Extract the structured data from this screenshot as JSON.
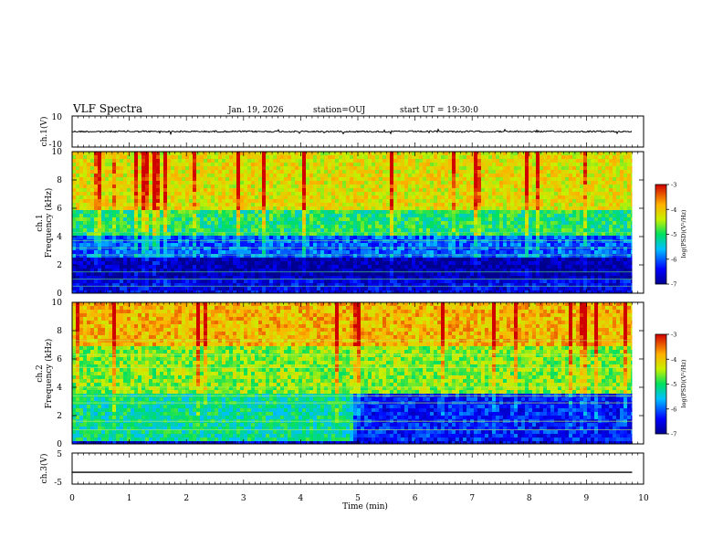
{
  "header": {
    "title": "VLF Spectra",
    "date": "Jan. 19, 2026",
    "station": "station=OUJ",
    "start": "start UT = 19:30:0"
  },
  "chart_data": [
    {
      "type": "line",
      "panel": "ch1-waveform",
      "ylabel": "ch.1(V)",
      "ylim": [
        -10,
        10
      ],
      "yticks": [
        "10",
        "-10"
      ],
      "xlim": [
        0,
        10
      ],
      "x": [
        0,
        9.8
      ],
      "y": [
        0,
        0
      ],
      "grid": false
    },
    {
      "type": "heatmap",
      "panel": "ch1-spectrogram",
      "ylabel_line1": "ch.1",
      "ylabel_line2": "Frequency (kHz)",
      "ylim": [
        0,
        10
      ],
      "yticks": [
        "0",
        "2",
        "4",
        "6",
        "8",
        "10"
      ],
      "xlim": [
        0,
        10
      ],
      "data_xmax": 9.8,
      "colorbar": {
        "label": "log(PSD)(V²/Hz)",
        "range": [
          -7,
          -3
        ],
        "ticks": [
          "-3",
          "-4",
          "-5",
          "-6",
          "-7"
        ]
      },
      "bands_kHz": [
        [
          0,
          1,
          -6.5
        ],
        [
          1,
          2.5,
          -6.8
        ],
        [
          2.5,
          4,
          -6.0
        ],
        [
          4,
          6,
          -5.0
        ],
        [
          6,
          10,
          -4.2
        ]
      ],
      "feature": "band 1.6-2.6 kHz more intense after 1.9 min"
    },
    {
      "type": "heatmap",
      "panel": "ch2-spectrogram",
      "ylabel_line1": "ch.2",
      "ylabel_line2": "Frequency (kHz)",
      "ylim": [
        0,
        10
      ],
      "yticks": [
        "0",
        "2",
        "4",
        "6",
        "8",
        "10"
      ],
      "xlim": [
        0,
        10
      ],
      "data_xmax": 9.8,
      "colorbar": {
        "label": "log(PSD)(V²/Hz)",
        "range": [
          -7,
          -3
        ],
        "ticks": [
          "-3",
          "-4",
          "-5",
          "-6",
          "-7"
        ]
      },
      "bands_kHz": [
        [
          0,
          3.5,
          -5.2
        ],
        [
          3.5,
          7,
          -4.6
        ],
        [
          7,
          10,
          -3.9
        ]
      ],
      "feature": "lower frequencies drop to about -6.3 after 4.9 min"
    },
    {
      "type": "line",
      "panel": "ch3-waveform",
      "ylabel": "ch.3(V)",
      "ylim": [
        -5,
        5
      ],
      "yticks": [
        "5",
        "0",
        "-5"
      ],
      "xlim": [
        0,
        10
      ],
      "x": [
        0,
        9.8
      ],
      "y": [
        -1.2,
        -1.2
      ],
      "grid": false,
      "xlabel": "Time (min)",
      "xticks": [
        "0",
        "1",
        "2",
        "3",
        "4",
        "5",
        "6",
        "7",
        "8",
        "9",
        "10"
      ]
    }
  ]
}
